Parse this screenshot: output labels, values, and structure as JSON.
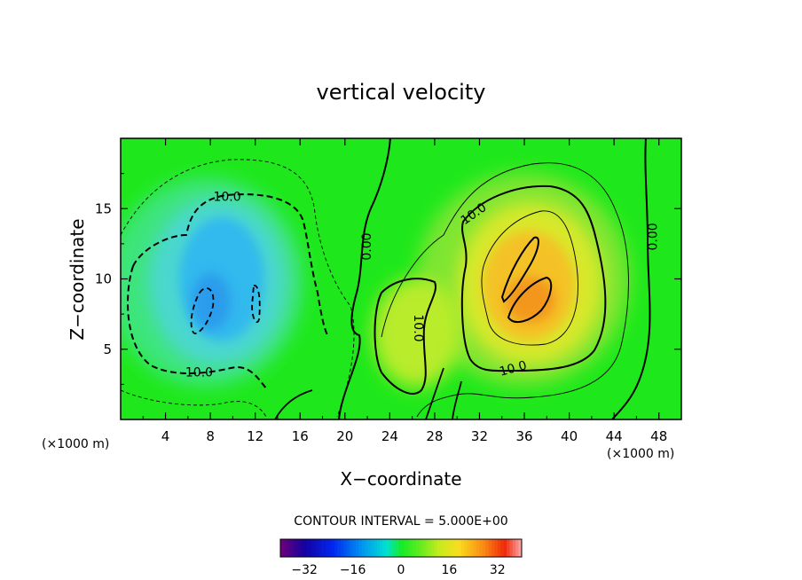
{
  "chart_data": {
    "type": "heatmap",
    "title": "vertical velocity",
    "xlabel": "X−coordinate",
    "ylabel": "Z−coordinate",
    "x_unit_left": "(×1000 m)",
    "x_unit_right": "(×1000 m)",
    "xlim": [
      0,
      50
    ],
    "ylim": [
      0,
      20
    ],
    "x_ticks": [
      4,
      8,
      12,
      16,
      20,
      24,
      28,
      32,
      36,
      40,
      44,
      48
    ],
    "y_ticks": [
      5,
      10,
      15
    ],
    "contour_interval_text": "CONTOUR INTERVAL = 5.000E+00",
    "contour_labels": [
      {
        "text": "10.0",
        "x": 9.5,
        "y": 15.8,
        "angle": 0
      },
      {
        "text": "10.0",
        "x": 7.0,
        "y": 3.3,
        "angle": 0
      },
      {
        "text": "0.00",
        "x": 22.0,
        "y": 12.3,
        "angle": -90
      },
      {
        "text": "10.0",
        "x": 26.5,
        "y": 6.5,
        "angle": 90
      },
      {
        "text": "10.0",
        "x": 31.5,
        "y": 14.6,
        "angle": -35
      },
      {
        "text": "10.0",
        "x": 35.0,
        "y": 3.6,
        "angle": -15
      },
      {
        "text": "0.00",
        "x": 47.5,
        "y": 13.0,
        "angle": -90
      }
    ],
    "field_features": [
      {
        "kind": "downdraft",
        "center_x": 8.5,
        "center_z": 9.5,
        "peak": -20
      },
      {
        "kind": "updraft",
        "center_x": 36.0,
        "center_z": 9.0,
        "peak": 24
      },
      {
        "kind": "updraft",
        "center_x": 26.0,
        "center_z": 7.0,
        "peak": 11
      }
    ],
    "colorbar": {
      "range": [
        -40,
        40
      ],
      "ticks": [
        -32,
        -16,
        0,
        16,
        32
      ],
      "tick_labels": [
        "−32",
        "−16",
        "0",
        "16",
        "32"
      ]
    }
  }
}
